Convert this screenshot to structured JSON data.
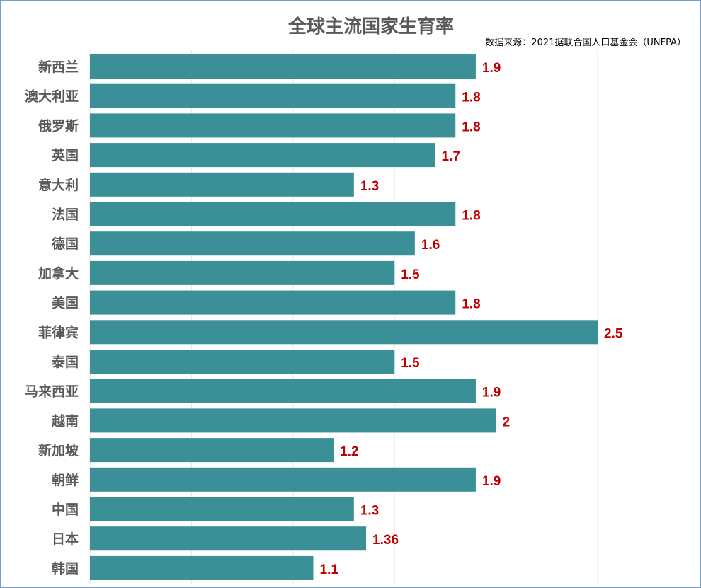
{
  "chart_data": {
    "type": "bar",
    "orientation": "horizontal",
    "title": "全球主流国家生育率",
    "subtitle": "数据来源：2021据联合国人口基金会（UNFPA）",
    "categories": [
      "新西兰",
      "澳大利亚",
      "俄罗斯",
      "英国",
      "意大利",
      "法国",
      "德国",
      "加拿大",
      "美国",
      "菲律宾",
      "泰国",
      "马来西亚",
      "越南",
      "新加坡",
      "朝鲜",
      "中国",
      "日本",
      "韩国"
    ],
    "values": [
      1.9,
      1.8,
      1.8,
      1.7,
      1.3,
      1.8,
      1.6,
      1.5,
      1.8,
      2.5,
      1.5,
      1.9,
      2,
      1.2,
      1.9,
      1.3,
      1.36,
      1.1
    ],
    "xlim": [
      0,
      3
    ],
    "grid": true,
    "data_labels": true,
    "colors": {
      "bar": "#3a9096",
      "label": "#c00000",
      "category": "#595959",
      "grid": "#e6e6e6"
    }
  }
}
